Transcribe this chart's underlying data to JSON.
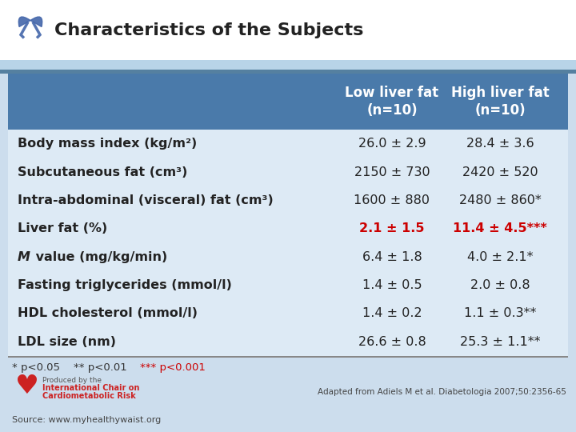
{
  "title": "Characteristics of the Subjects",
  "header_bg": "#4a7aaa",
  "header_text_color": "#ffffff",
  "outer_bg": "#ccdded",
  "title_bg": "#e8f2fa",
  "table_bg": "#ddeaf5",
  "row_bg_even": "#ddeaf5",
  "row_bg_odd": "#ddeaf5",
  "col_headers": [
    "Low liver fat\n(n=10)",
    "High liver fat\n(n=10)"
  ],
  "rows": [
    {
      "label": "Body mass index (kg/m²)",
      "italic_M": false,
      "low": "26.0 ± 2.9",
      "high": "28.4 ± 3.6",
      "low_bold": false,
      "high_bold": false,
      "low_color": "#222222",
      "high_color": "#222222"
    },
    {
      "label": "Subcutaneous fat (cm³)",
      "italic_M": false,
      "low": "2150 ± 730",
      "high": "2420 ± 520",
      "low_bold": false,
      "high_bold": false,
      "low_color": "#222222",
      "high_color": "#222222"
    },
    {
      "label": "Intra-abdominal (visceral) fat (cm³)",
      "italic_M": false,
      "low": "1600 ± 880",
      "high": "2480 ± 860*",
      "low_bold": false,
      "high_bold": false,
      "low_color": "#222222",
      "high_color": "#222222"
    },
    {
      "label": "Liver fat (%)",
      "italic_M": false,
      "low": "2.1 ± 1.5",
      "high": "11.4 ± 4.5***",
      "low_bold": true,
      "high_bold": true,
      "low_color": "#cc0000",
      "high_color": "#cc0000"
    },
    {
      "label": "M value (mg/kg/min)",
      "italic_M": true,
      "low": "6.4 ± 1.8",
      "high": "4.0 ± 2.1*",
      "low_bold": false,
      "high_bold": false,
      "low_color": "#222222",
      "high_color": "#222222"
    },
    {
      "label": "Fasting triglycerides (mmol/l)",
      "italic_M": false,
      "low": "1.4 ± 0.5",
      "high": "2.0 ± 0.8",
      "low_bold": false,
      "high_bold": false,
      "low_color": "#222222",
      "high_color": "#222222"
    },
    {
      "label": "HDL cholesterol (mmol/l)",
      "italic_M": false,
      "low": "1.4 ± 0.2",
      "high": "1.1 ± 0.3**",
      "low_bold": false,
      "high_bold": false,
      "low_color": "#222222",
      "high_color": "#222222"
    },
    {
      "label": "LDL size (nm)",
      "italic_M": false,
      "low": "26.6 ± 0.8",
      "high": "25.3 ± 1.1**",
      "low_bold": false,
      "high_bold": false,
      "low_color": "#222222",
      "high_color": "#222222"
    }
  ],
  "footnote_parts": [
    {
      "text": "* p<0.05",
      "color": "#333333"
    },
    {
      "text": "  ** p<0.01",
      "color": "#333333"
    },
    {
      "text": "  *** p<0.001",
      "color": "#cc0000"
    }
  ],
  "credit": "Adapted from Adiels M et al. Diabetologia 2007;50:2356-65",
  "source": "Source: www.myhealthywaist.org"
}
